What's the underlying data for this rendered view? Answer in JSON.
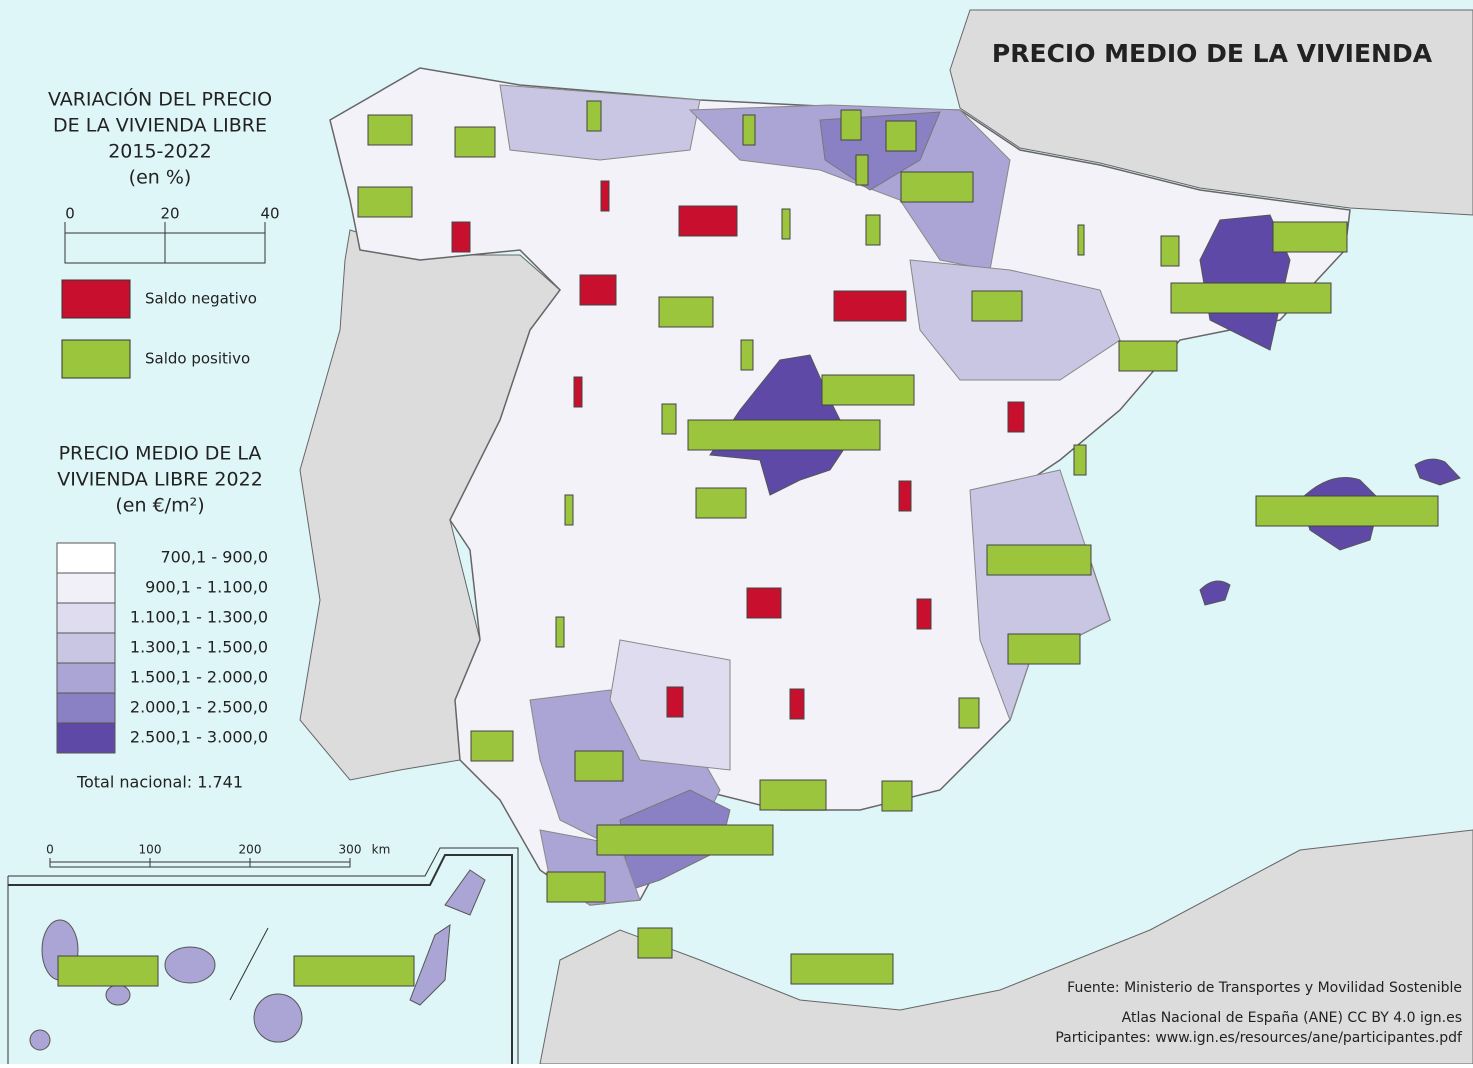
{
  "title": "PRECIO MEDIO DE LA VIVIENDA",
  "variation_legend": {
    "title": [
      "VARIACIÓN DEL PRECIO",
      "DE LA VIVIENDA LIBRE",
      "2015-2022",
      "(en %)"
    ],
    "scale_ticks": [
      0,
      20,
      40
    ],
    "items": [
      {
        "label": "Saldo negativo",
        "color": "#c8102e"
      },
      {
        "label": "Saldo positivo",
        "color": "#9bc53d"
      }
    ]
  },
  "price_legend": {
    "title": [
      "PRECIO MEDIO DE LA",
      "VIVIENDA LIBRE 2022",
      "(en €/m²)"
    ],
    "classes": [
      {
        "label": "700,1 - 900,0",
        "color": "#ffffff"
      },
      {
        "label": "900,1 - 1.100,0",
        "color": "#f1f0f8"
      },
      {
        "label": "1.100,1 - 1.300,0",
        "color": "#dedcee"
      },
      {
        "label": "1.300,1 - 1.500,0",
        "color": "#c9c6e4"
      },
      {
        "label": "1.500,1 - 2.000,0",
        "color": "#aaa5d4"
      },
      {
        "label": "2.000,1 - 2.500,0",
        "color": "#8a80c4"
      },
      {
        "label": "2.500,1 - 3.000,0",
        "color": "#5e4aa6"
      }
    ],
    "total": "Total nacional: 1.741"
  },
  "scale_bar": {
    "ticks": [
      0,
      100,
      200,
      300
    ],
    "unit": "km"
  },
  "bars": [
    8.8,
    8,
    10.8,
    -3.6,
    2.8,
    2.4,
    4,
    6,
    2.4,
    14.4,
    -1.6,
    -11.6,
    1.6,
    2.8,
    1.2,
    3.6,
    14.8,
    32,
    -7.2,
    10.8,
    -14.4,
    10,
    11.6,
    -1.6,
    2.4,
    2.8,
    38.4,
    18.4,
    -3.2,
    2.4,
    1.6,
    10,
    -2.4,
    36.4,
    20.8,
    1.6,
    -6.8,
    -2.8,
    14.4,
    8.4,
    -3.2,
    -2.8,
    4,
    9.6,
    13.2,
    6,
    35.2,
    11.6,
    6.8,
    20.4,
    20,
    24
  ],
  "source": [
    "Fuente: Ministerio de Transportes y Movilidad Sostenible",
    "Atlas Nacional de España (ANE) CC BY 4.0 ign.es",
    "Participantes: www.ign.es/resources/ane/participantes.pdf"
  ]
}
